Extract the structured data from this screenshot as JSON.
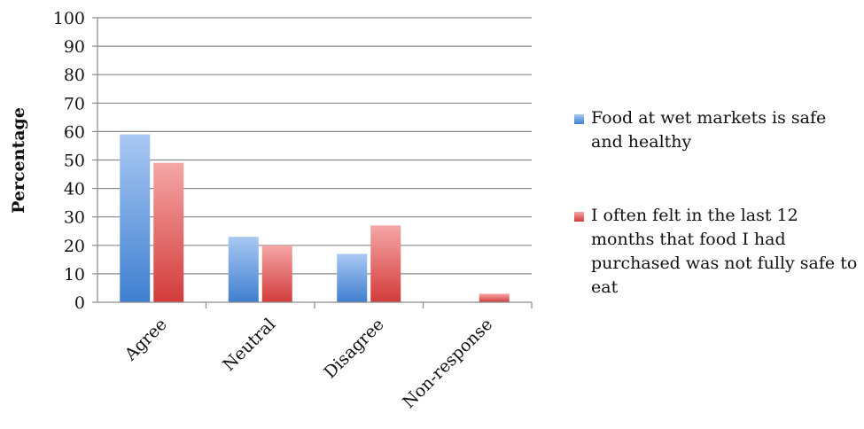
{
  "chart_data": {
    "type": "bar",
    "title": "",
    "xlabel": "",
    "ylabel": "Percentage",
    "ylim": [
      0,
      100
    ],
    "yticks": [
      0,
      10,
      20,
      30,
      40,
      50,
      60,
      70,
      80,
      90,
      100
    ],
    "grid": true,
    "legend_position": "right",
    "categories": [
      "Agree",
      "Neutral",
      "Disagree",
      "Non-response"
    ],
    "series": [
      {
        "name": "Food at wet markets is safe and healthy",
        "values": [
          59,
          23,
          17,
          0
        ],
        "color_top": "#a9c8f3",
        "color_bottom": "#3f7fd0"
      },
      {
        "name": "I often felt in the last 12 months that food I had purchased was not fully safe to eat",
        "values": [
          49,
          20,
          27,
          3
        ],
        "color_top": "#f5a6a6",
        "color_bottom": "#d33b3b"
      }
    ]
  }
}
